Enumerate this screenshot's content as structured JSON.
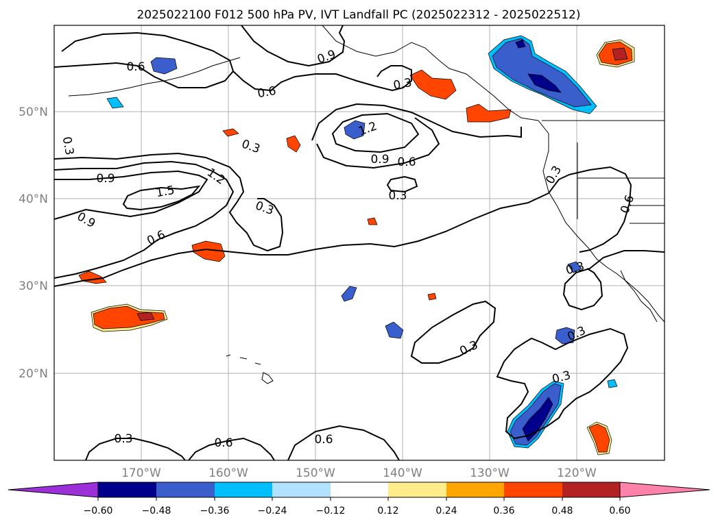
{
  "title": "2025022100 F012 500 hPa PV, IVT Landfall PC (2025022312 - 2025022512)",
  "longitude_labels": [
    "170°W",
    "160°W",
    "150°W",
    "140°W",
    "130°W",
    "120°W"
  ],
  "latitude_labels": [
    "50°N",
    "40°N",
    "30°N",
    "20°N"
  ],
  "pv_contour_labels": [
    "0.6",
    "0.9",
    "0.6",
    "0.3",
    "0.3",
    "1.2",
    "0.9",
    "0.6",
    "0.3",
    "0.9",
    "1.5",
    "1.2",
    "0.9",
    "0.6",
    "0.3",
    "0.3",
    "0.6",
    "0.3",
    "0.3",
    "0.3",
    "0.3",
    "0.3",
    "0.3",
    "0.6"
  ],
  "colorbar": {
    "tick_labels": [
      "−0.60",
      "−0.48",
      "−0.36",
      "−0.24",
      "−0.12",
      "0.12",
      "0.24",
      "0.36",
      "0.48",
      "0.60"
    ],
    "colors": [
      "#9b30d9",
      "#00008b",
      "#3a5fcd",
      "#00bfff",
      "#b0e2ff",
      "#ffffff",
      "#ffec8b",
      "#ffa500",
      "#ff4500",
      "#b22222",
      "#ff82ab"
    ]
  },
  "map_colors": {
    "negative_dark": "#00008b",
    "negative_mid": "#3a5fcd",
    "negative_light": "#00bfff",
    "positive_light": "#ffec8b",
    "positive_mid": "#ffa500",
    "positive_dark": "#ff4500",
    "positive_darkest": "#b22222"
  }
}
